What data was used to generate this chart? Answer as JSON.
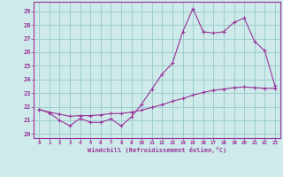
{
  "xlabel": "Windchill (Refroidissement éolien,°C)",
  "background_color": "#ceeaea",
  "grid_color": "#9ecece",
  "line_color": "#993399",
  "xlim": [
    -0.5,
    23.5
  ],
  "ylim": [
    19.7,
    29.7
  ],
  "yticks": [
    20,
    21,
    22,
    23,
    24,
    25,
    26,
    27,
    28,
    29
  ],
  "xticks": [
    0,
    1,
    2,
    3,
    4,
    5,
    6,
    7,
    8,
    9,
    10,
    11,
    12,
    13,
    14,
    15,
    16,
    17,
    18,
    19,
    20,
    21,
    22,
    23
  ],
  "line1_x": [
    0,
    1,
    2,
    3,
    4,
    5,
    6,
    7,
    8,
    9,
    10,
    11,
    12,
    13,
    14,
    15,
    16,
    17,
    18,
    19,
    20,
    21,
    22,
    23
  ],
  "line1_y": [
    21.8,
    21.55,
    21.0,
    20.6,
    21.15,
    20.85,
    20.85,
    21.1,
    20.6,
    21.25,
    22.2,
    23.3,
    24.4,
    25.2,
    27.5,
    29.2,
    27.5,
    27.4,
    27.5,
    28.2,
    28.5,
    26.8,
    26.1,
    23.5
  ],
  "line2_x": [
    0,
    1,
    2,
    3,
    4,
    5,
    6,
    7,
    8,
    9,
    10,
    11,
    12,
    13,
    14,
    15,
    16,
    17,
    18,
    19,
    20,
    21,
    22,
    23
  ],
  "line2_y": [
    21.8,
    21.6,
    21.45,
    21.3,
    21.35,
    21.35,
    21.4,
    21.5,
    21.5,
    21.6,
    21.75,
    21.95,
    22.15,
    22.4,
    22.6,
    22.85,
    23.05,
    23.2,
    23.3,
    23.4,
    23.45,
    23.4,
    23.35,
    23.35
  ]
}
